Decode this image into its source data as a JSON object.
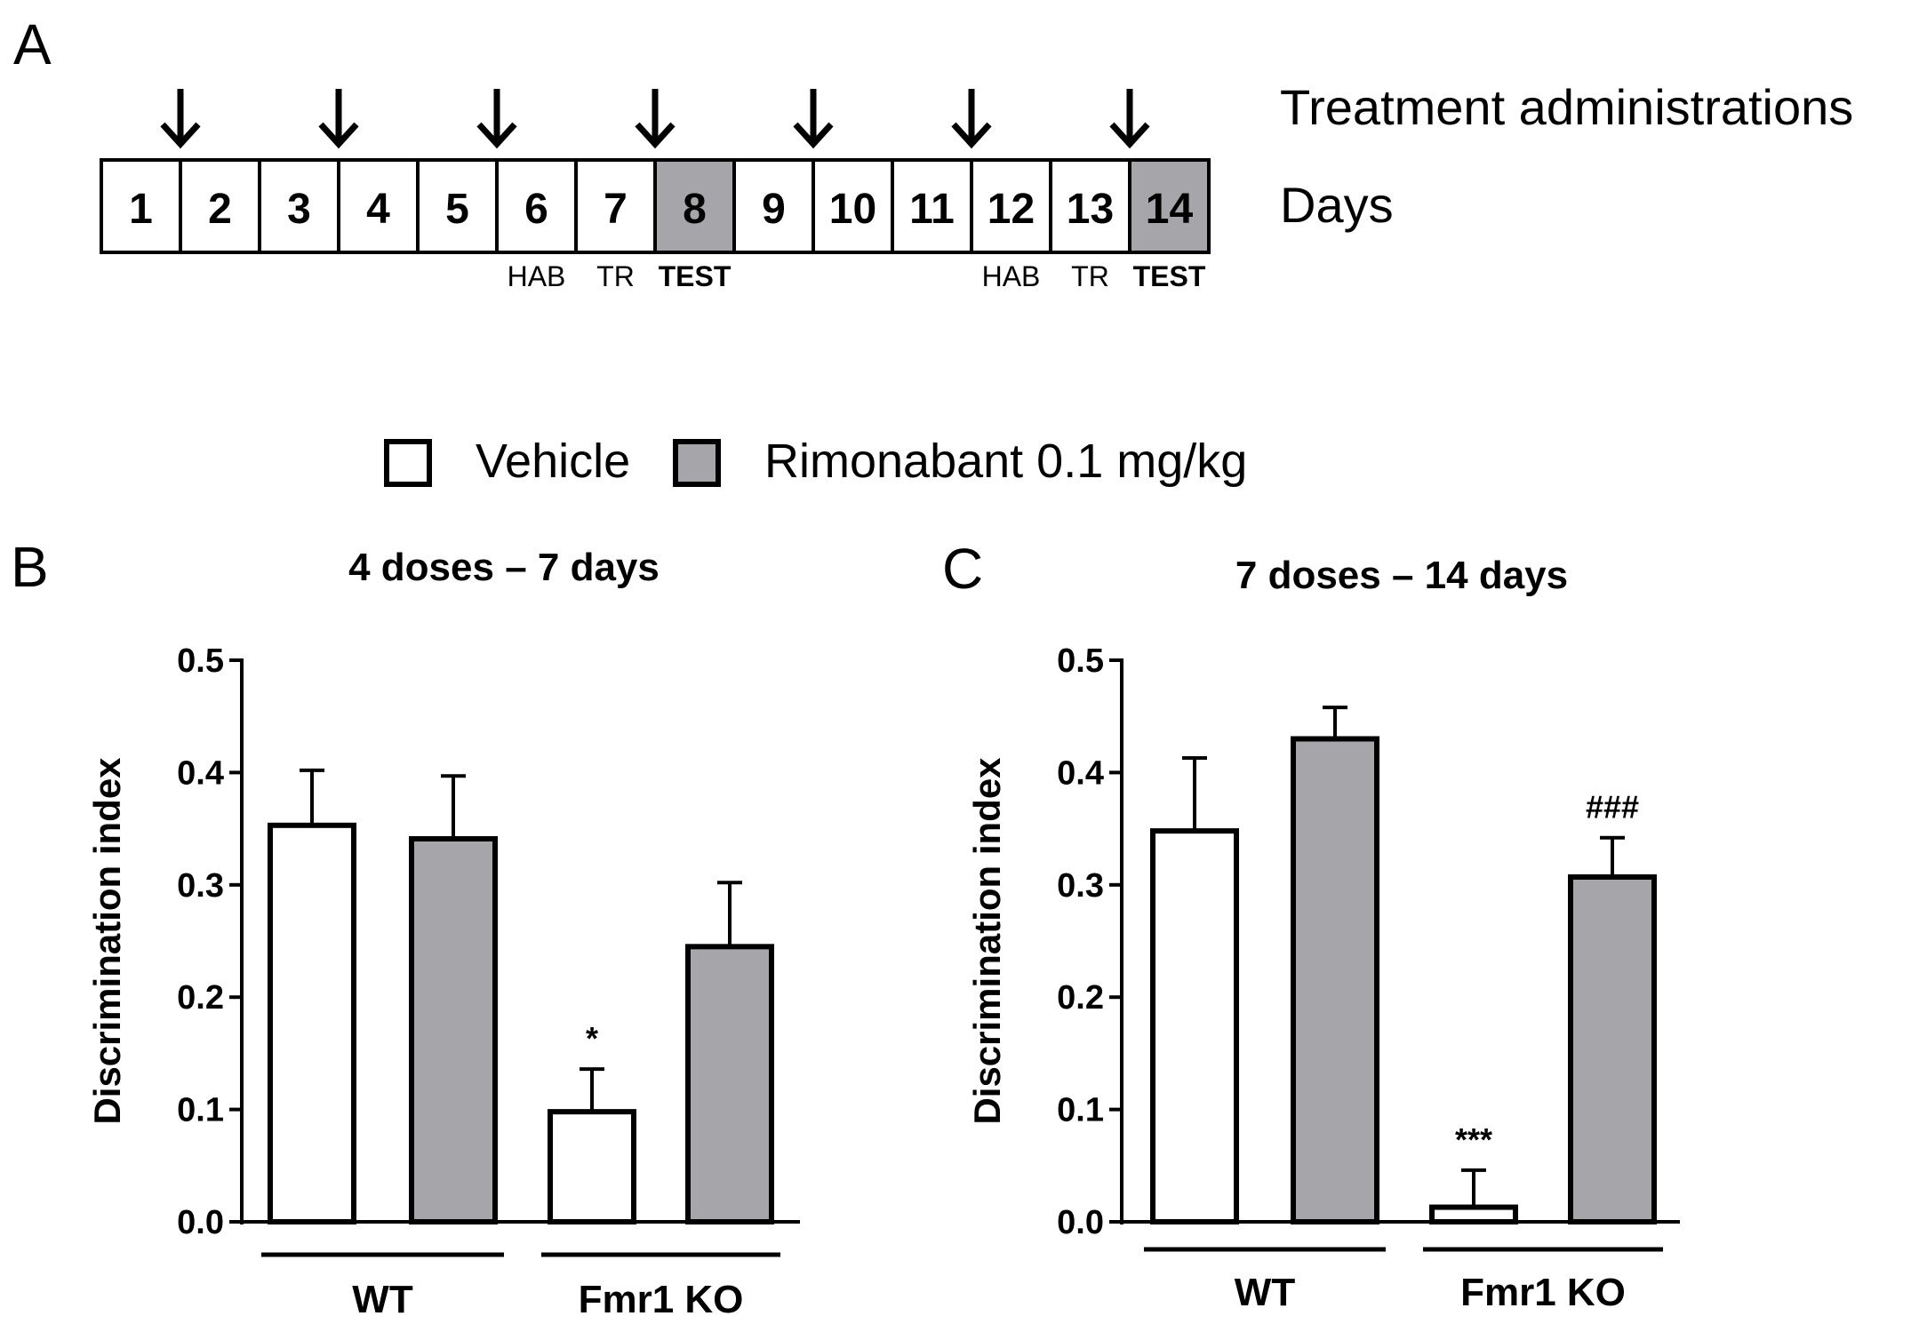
{
  "panel_labels": {
    "a": "A",
    "b": "B",
    "c": "C"
  },
  "timeline": {
    "treatment_label": "Treatment administrations",
    "days_label": "Days",
    "days": [
      "1",
      "2",
      "3",
      "4",
      "5",
      "6",
      "7",
      "8",
      "9",
      "10",
      "11",
      "12",
      "13",
      "14"
    ],
    "test_days": [
      8,
      14
    ],
    "arrow_boundaries_after_day": [
      1,
      3,
      5,
      7,
      9,
      11,
      13
    ],
    "phase_labels": [
      {
        "day": 6,
        "text": "HAB"
      },
      {
        "day": 7,
        "text": "TR"
      },
      {
        "day": 8,
        "text": "TEST"
      },
      {
        "day": 12,
        "text": "HAB"
      },
      {
        "day": 13,
        "text": "TR"
      },
      {
        "day": 14,
        "text": "TEST"
      }
    ]
  },
  "legend": [
    {
      "label": "Vehicle",
      "color": "#ffffff"
    },
    {
      "label": "Rimonabant 0.1 mg/kg",
      "color": "#a6a5aa"
    }
  ],
  "chart_data": [
    {
      "type": "bar",
      "title": "4 doses – 7 days",
      "ylabel": "Discrimination index",
      "ylim": [
        0,
        0.5
      ],
      "yticks": [
        "0.0",
        "0.1",
        "0.2",
        "0.3",
        "0.4",
        "0.5"
      ],
      "groups": [
        "WT",
        "Fmr1 KO"
      ],
      "series": [
        {
          "name": "Vehicle",
          "values": [
            0.353,
            0.098
          ],
          "errors": [
            0.049,
            0.038
          ]
        },
        {
          "name": "Rimonabant 0.1 mg/kg",
          "values": [
            0.341,
            0.245
          ],
          "errors": [
            0.056,
            0.057
          ]
        }
      ],
      "annotations": [
        {
          "group": 1,
          "series": 0,
          "text": "*"
        }
      ]
    },
    {
      "type": "bar",
      "title": "7 doses – 14 days",
      "ylabel": "Discrimination index",
      "ylim": [
        0,
        0.5
      ],
      "yticks": [
        "0.0",
        "0.1",
        "0.2",
        "0.3",
        "0.4",
        "0.5"
      ],
      "groups": [
        "WT",
        "Fmr1 KO"
      ],
      "series": [
        {
          "name": "Vehicle",
          "values": [
            0.348,
            0.013
          ],
          "errors": [
            0.065,
            0.033
          ]
        },
        {
          "name": "Rimonabant 0.1 mg/kg",
          "values": [
            0.43,
            0.307
          ],
          "errors": [
            0.028,
            0.035
          ]
        }
      ],
      "annotations": [
        {
          "group": 1,
          "series": 0,
          "text": "***"
        },
        {
          "group": 1,
          "series": 1,
          "text": "###"
        }
      ]
    }
  ]
}
